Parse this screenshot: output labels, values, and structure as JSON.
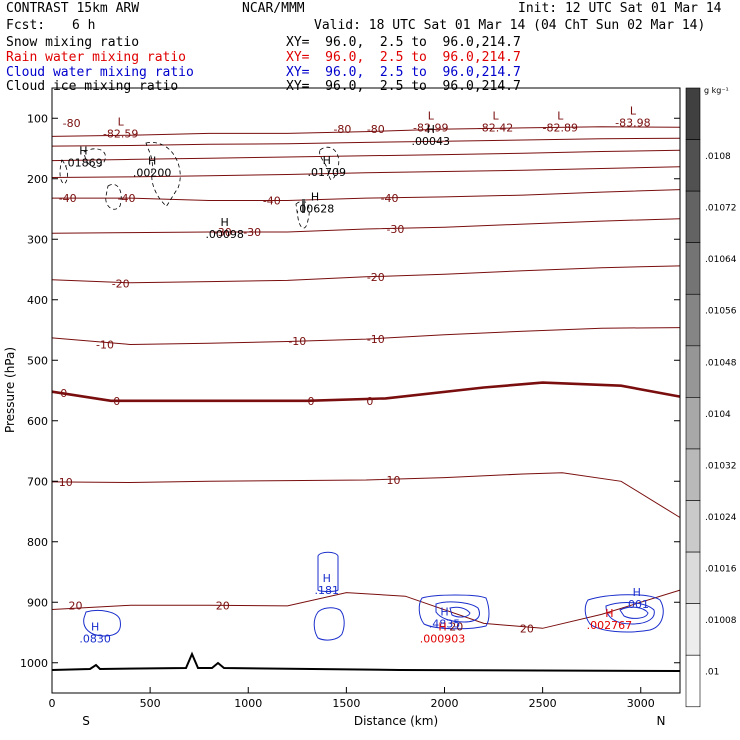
{
  "header": {
    "model": "CONTRAST 15km ARW",
    "org": "NCAR/MMM",
    "init": "Init: 12 UTC Sat 01 Mar 14",
    "fcst_label": "Fcst:",
    "fcst_value": "6 h",
    "valid": "Valid: 18 UTC Sat 01 Mar 14 (04 ChT Sun 02 Mar 14)",
    "fields": [
      {
        "name": "Snow mixing ratio",
        "xy": "XY=  96.0,  2.5 to  96.0,214.7",
        "color": "#000000"
      },
      {
        "name": "Rain water mixing ratio",
        "xy": "XY=  96.0,  2.5 to  96.0,214.7",
        "color": "#e00000"
      },
      {
        "name": "Cloud water mixing ratio",
        "xy": "XY=  96.0,  2.5 to  96.0,214.7",
        "color": "#0000cc"
      },
      {
        "name": "Cloud ice mixing ratio",
        "xy": "XY=  96.0,  2.5 to  96.0,214.7",
        "color": "#000000"
      }
    ]
  },
  "chart_data": {
    "type": "contour-cross-section",
    "title": "Vertical cross-section",
    "xlabel": "Distance (km)",
    "ylabel": "Pressure (hPa)",
    "xlim": [
      0,
      3200
    ],
    "ylim": [
      1050,
      50
    ],
    "x_ticks": [
      0,
      500,
      1000,
      1500,
      2000,
      2500,
      3000
    ],
    "y_ticks": [
      100,
      200,
      300,
      400,
      500,
      600,
      700,
      800,
      900,
      1000
    ],
    "x_end_labels": {
      "left": "S",
      "right": "N"
    },
    "colorbar": {
      "unit": "g kg⁻¹",
      "labels": [
        ".0108",
        ".01072",
        ".01064",
        ".01056",
        ".01048",
        ".0104",
        ".01032",
        ".01024",
        ".01016",
        ".01008",
        ".01"
      ]
    },
    "temperature_colors": {
      "isotherm": "#7a0e0e",
      "terrain": "#000000",
      "cloud_water": "#1a2ecc",
      "rain": "#e00000"
    },
    "isotherm_labels": [
      {
        "text": "-80",
        "x": 100,
        "p": 108
      },
      {
        "text": "-80",
        "x": 1480,
        "p": 118
      },
      {
        "text": "-80",
        "x": 1650,
        "p": 118
      },
      {
        "text": "-40",
        "x": 80,
        "p": 232
      },
      {
        "text": "-40",
        "x": 380,
        "p": 232
      },
      {
        "text": "-40",
        "x": 1120,
        "p": 236
      },
      {
        "text": "-40",
        "x": 1720,
        "p": 232
      },
      {
        "text": "-30",
        "x": 870,
        "p": 288
      },
      {
        "text": "-30",
        "x": 1020,
        "p": 288
      },
      {
        "text": "-30",
        "x": 1750,
        "p": 283
      },
      {
        "text": "-20",
        "x": 350,
        "p": 373
      },
      {
        "text": "-20",
        "x": 1650,
        "p": 362
      },
      {
        "text": "-10",
        "x": 270,
        "p": 474
      },
      {
        "text": "-10",
        "x": 1250,
        "p": 468
      },
      {
        "text": "-10",
        "x": 1650,
        "p": 465
      },
      {
        "text": "0",
        "x": 60,
        "p": 554
      },
      {
        "text": "0",
        "x": 330,
        "p": 567
      },
      {
        "text": "0",
        "x": 1320,
        "p": 567
      },
      {
        "text": "0",
        "x": 1620,
        "p": 567
      },
      {
        "text": "10",
        "x": 70,
        "p": 701
      },
      {
        "text": "10",
        "x": 1740,
        "p": 698
      },
      {
        "text": "20",
        "x": 120,
        "p": 905
      },
      {
        "text": "20",
        "x": 870,
        "p": 905
      },
      {
        "text": "20",
        "x": 2060,
        "p": 940
      },
      {
        "text": "20",
        "x": 2420,
        "p": 943
      }
    ],
    "extrema": [
      {
        "type": "L",
        "value": "-82.59",
        "x": 350,
        "p": 115,
        "color": "#7a0e0e"
      },
      {
        "type": "L",
        "value": "-82.99",
        "x": 1930,
        "p": 105,
        "color": "#7a0e0e"
      },
      {
        "type": "L",
        "value": "-82.42",
        "x": 2260,
        "p": 105,
        "color": "#7a0e0e"
      },
      {
        "type": "L",
        "value": "-82.89",
        "x": 2590,
        "p": 105,
        "color": "#7a0e0e"
      },
      {
        "type": "L",
        "value": "-83.98",
        "x": 2960,
        "p": 97,
        "color": "#7a0e0e"
      },
      {
        "type": "H",
        "value": ".00043",
        "x": 1930,
        "p": 128,
        "color": "#000000"
      },
      {
        "type": "H",
        "value": ".01869",
        "x": 160,
        "p": 163,
        "color": "#000000"
      },
      {
        "type": "H",
        "value": ".00200",
        "x": 510,
        "p": 180,
        "color": "#000000"
      },
      {
        "type": "H",
        "value": ".01709",
        "x": 1400,
        "p": 179,
        "color": "#000000"
      },
      {
        "type": "H",
        "value": ".00628",
        "x": 1340,
        "p": 239,
        "color": "#000000"
      },
      {
        "type": "H",
        "value": ".00098",
        "x": 880,
        "p": 281,
        "color": "#000000"
      },
      {
        "type": "H",
        "value": ".181",
        "x": 1400,
        "p": 870,
        "color": "#1a2ecc"
      },
      {
        "type": "H",
        "value": ".0830",
        "x": 220,
        "p": 950,
        "color": "#1a2ecc"
      },
      {
        "type": "H",
        "value": ".4835",
        "x": 2000,
        "p": 925,
        "color": "#1a2ecc"
      },
      {
        "type": "H",
        "value": ".000903",
        "x": 1990,
        "p": 950,
        "color": "#e00000"
      },
      {
        "type": "H",
        "value": ".001",
        "x": 2980,
        "p": 893,
        "color": "#1a2ecc"
      },
      {
        "type": "H",
        "value": ".002767",
        "x": 2840,
        "p": 928,
        "color": "#e00000"
      }
    ],
    "isotherms_hpa": [
      {
        "level": -80,
        "x": [
          0,
          400,
          800,
          1200,
          1600,
          2000,
          2400,
          2800,
          3200
        ],
        "p": [
          130,
          128,
          125,
          125,
          122,
          118,
          116,
          114,
          115
        ]
      },
      {
        "level": -70,
        "x": [
          0,
          400,
          800,
          1200,
          1600,
          2000,
          2400,
          2800,
          3200
        ],
        "p": [
          146,
          145,
          143,
          142,
          140,
          138,
          136,
          134,
          133
        ]
      },
      {
        "level": -60,
        "x": [
          0,
          400,
          800,
          1200,
          1600,
          2000,
          2400,
          2800,
          3200
        ],
        "p": [
          170,
          168,
          166,
          164,
          162,
          160,
          158,
          155,
          153
        ]
      },
      {
        "level": -50,
        "x": [
          0,
          400,
          800,
          1200,
          1600,
          2000,
          2400,
          2800,
          3200
        ],
        "p": [
          198,
          197,
          195,
          193,
          190,
          188,
          186,
          183,
          180
        ]
      },
      {
        "level": -40,
        "x": [
          0,
          400,
          800,
          1200,
          1600,
          2000,
          2400,
          2800,
          3200
        ],
        "p": [
          232,
          232,
          236,
          236,
          232,
          230,
          227,
          222,
          218
        ]
      },
      {
        "level": -30,
        "x": [
          0,
          400,
          800,
          1200,
          1600,
          2000,
          2400,
          2800,
          3200
        ],
        "p": [
          290,
          289,
          288,
          288,
          283,
          280,
          275,
          270,
          266
        ]
      },
      {
        "level": -20,
        "x": [
          0,
          400,
          800,
          1200,
          1600,
          2000,
          2400,
          2800,
          3200
        ],
        "p": [
          367,
          372,
          370,
          368,
          362,
          358,
          352,
          347,
          344
        ]
      },
      {
        "level": -10,
        "x": [
          0,
          400,
          800,
          1200,
          1600,
          2000,
          2400,
          2800,
          3200
        ],
        "p": [
          463,
          474,
          472,
          469,
          465,
          458,
          452,
          447,
          446
        ]
      },
      {
        "level": 0,
        "x": [
          0,
          300,
          800,
          1300,
          1700,
          2200,
          2500,
          2900,
          3200
        ],
        "p": [
          552,
          567,
          567,
          567,
          563,
          545,
          537,
          542,
          560
        ]
      },
      {
        "level": 10,
        "x": [
          0,
          400,
          800,
          1200,
          1600,
          2000,
          2400,
          2600,
          2900,
          3200
        ],
        "p": [
          701,
          702,
          700,
          699,
          698,
          694,
          688,
          686,
          700,
          760
        ]
      },
      {
        "level": 20,
        "x": [
          0,
          400,
          800,
          1200,
          1500,
          1800,
          2200,
          2500,
          2800,
          3200
        ],
        "p": [
          912,
          905,
          905,
          906,
          884,
          890,
          935,
          943,
          920,
          880
        ]
      }
    ]
  }
}
